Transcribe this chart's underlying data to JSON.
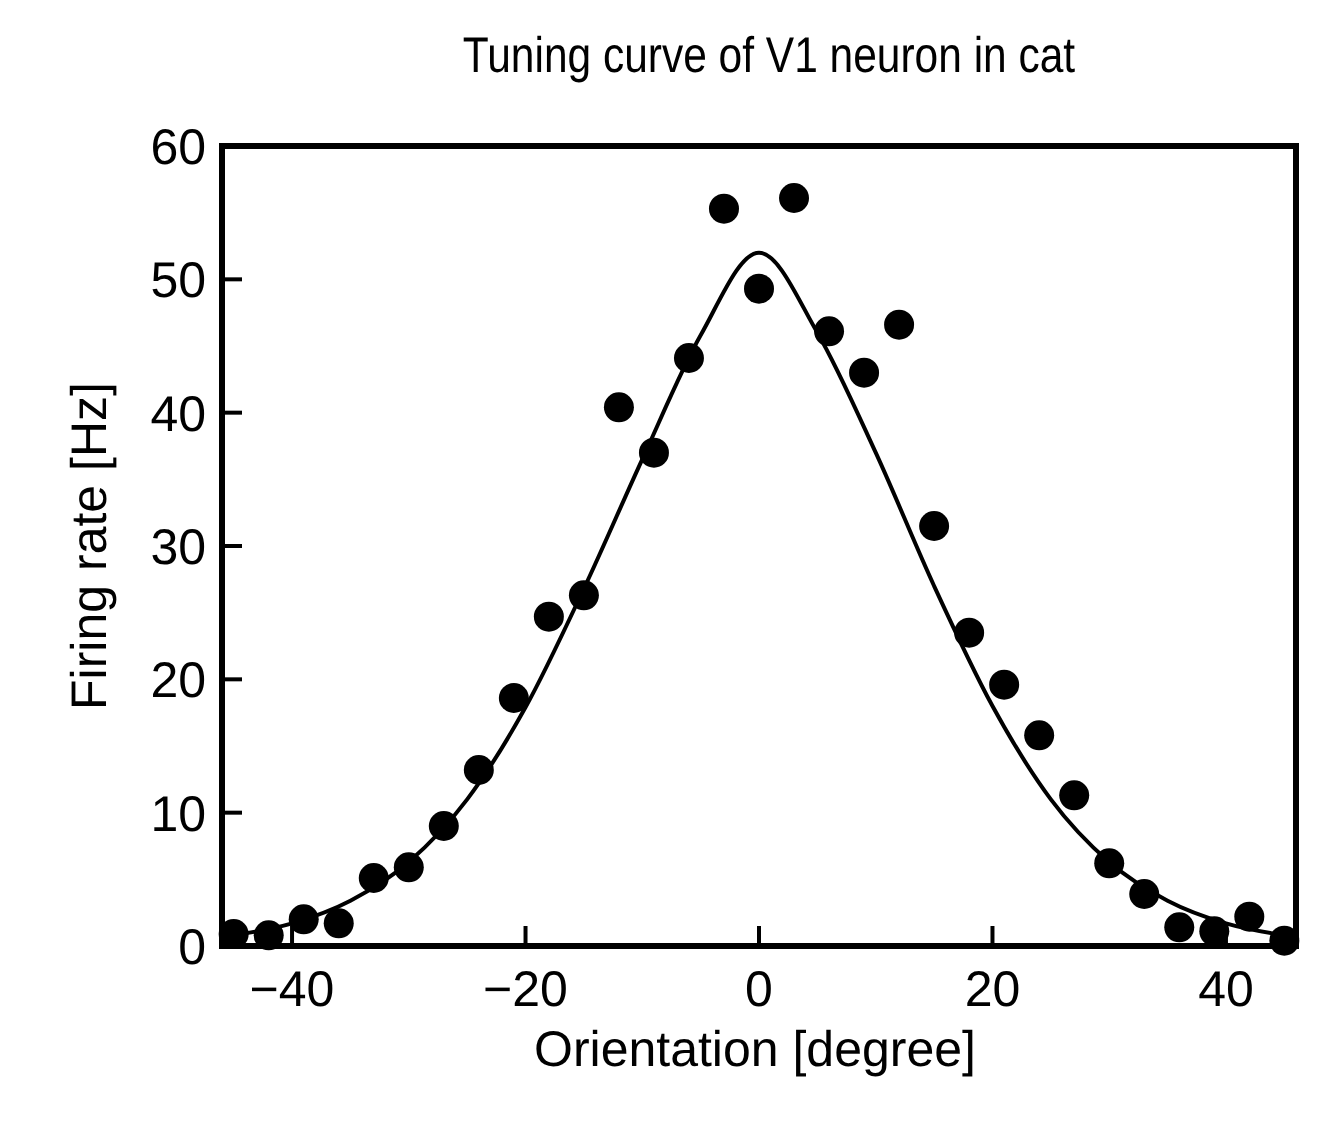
{
  "chart_data": {
    "type": "scatter",
    "title": "Tuning curve of V1 neuron in cat",
    "xlabel": "Orientation [degree]",
    "ylabel": "Firing rate [Hz]",
    "xlim": [
      -46,
      46
    ],
    "xticks": [
      {
        "value": -40,
        "label": "−40"
      },
      {
        "value": -20,
        "label": "−20"
      },
      0,
      20,
      40
    ],
    "ylim": [
      0,
      60
    ],
    "yticks": [
      0,
      10,
      20,
      30,
      40,
      50,
      60
    ],
    "grid": false,
    "series": [
      {
        "color": "#000000",
        "marker": "circle",
        "x": [
          -45,
          -42,
          -39,
          -36,
          -33,
          -30,
          -27,
          -24,
          -21,
          -18,
          -15,
          -12,
          -9,
          -6,
          -3,
          0,
          3,
          6,
          9,
          12,
          15,
          18,
          21,
          24,
          27,
          30,
          33,
          36,
          39,
          42,
          45
        ],
        "values": [
          0.9,
          0.8,
          2.0,
          1.7,
          5.1,
          5.9,
          9.0,
          13.2,
          18.6,
          24.7,
          26.3,
          40.4,
          37.0,
          44.1,
          55.3,
          49.3,
          56.1,
          46.1,
          43.0,
          46.6,
          31.5,
          23.5,
          19.6,
          15.8,
          11.3,
          6.2,
          3.9,
          1.4,
          1.1,
          2.2,
          0.4
        ]
      },
      {
        "type": "line",
        "color": "#000000",
        "marker": "none",
        "line_style": "solid",
        "x": [
          -45,
          -40,
          -35,
          -30,
          -25,
          -20,
          -15,
          -10,
          -5,
          0,
          5,
          10,
          15,
          20,
          25,
          30,
          35,
          40,
          45
        ],
        "values": [
          0.8,
          1.7,
          3.4,
          6.3,
          11,
          17.9,
          26.8,
          36.5,
          45.8,
          52,
          46,
          37,
          27,
          18,
          11,
          6.3,
          3.4,
          1.7,
          0.8
        ]
      }
    ]
  }
}
